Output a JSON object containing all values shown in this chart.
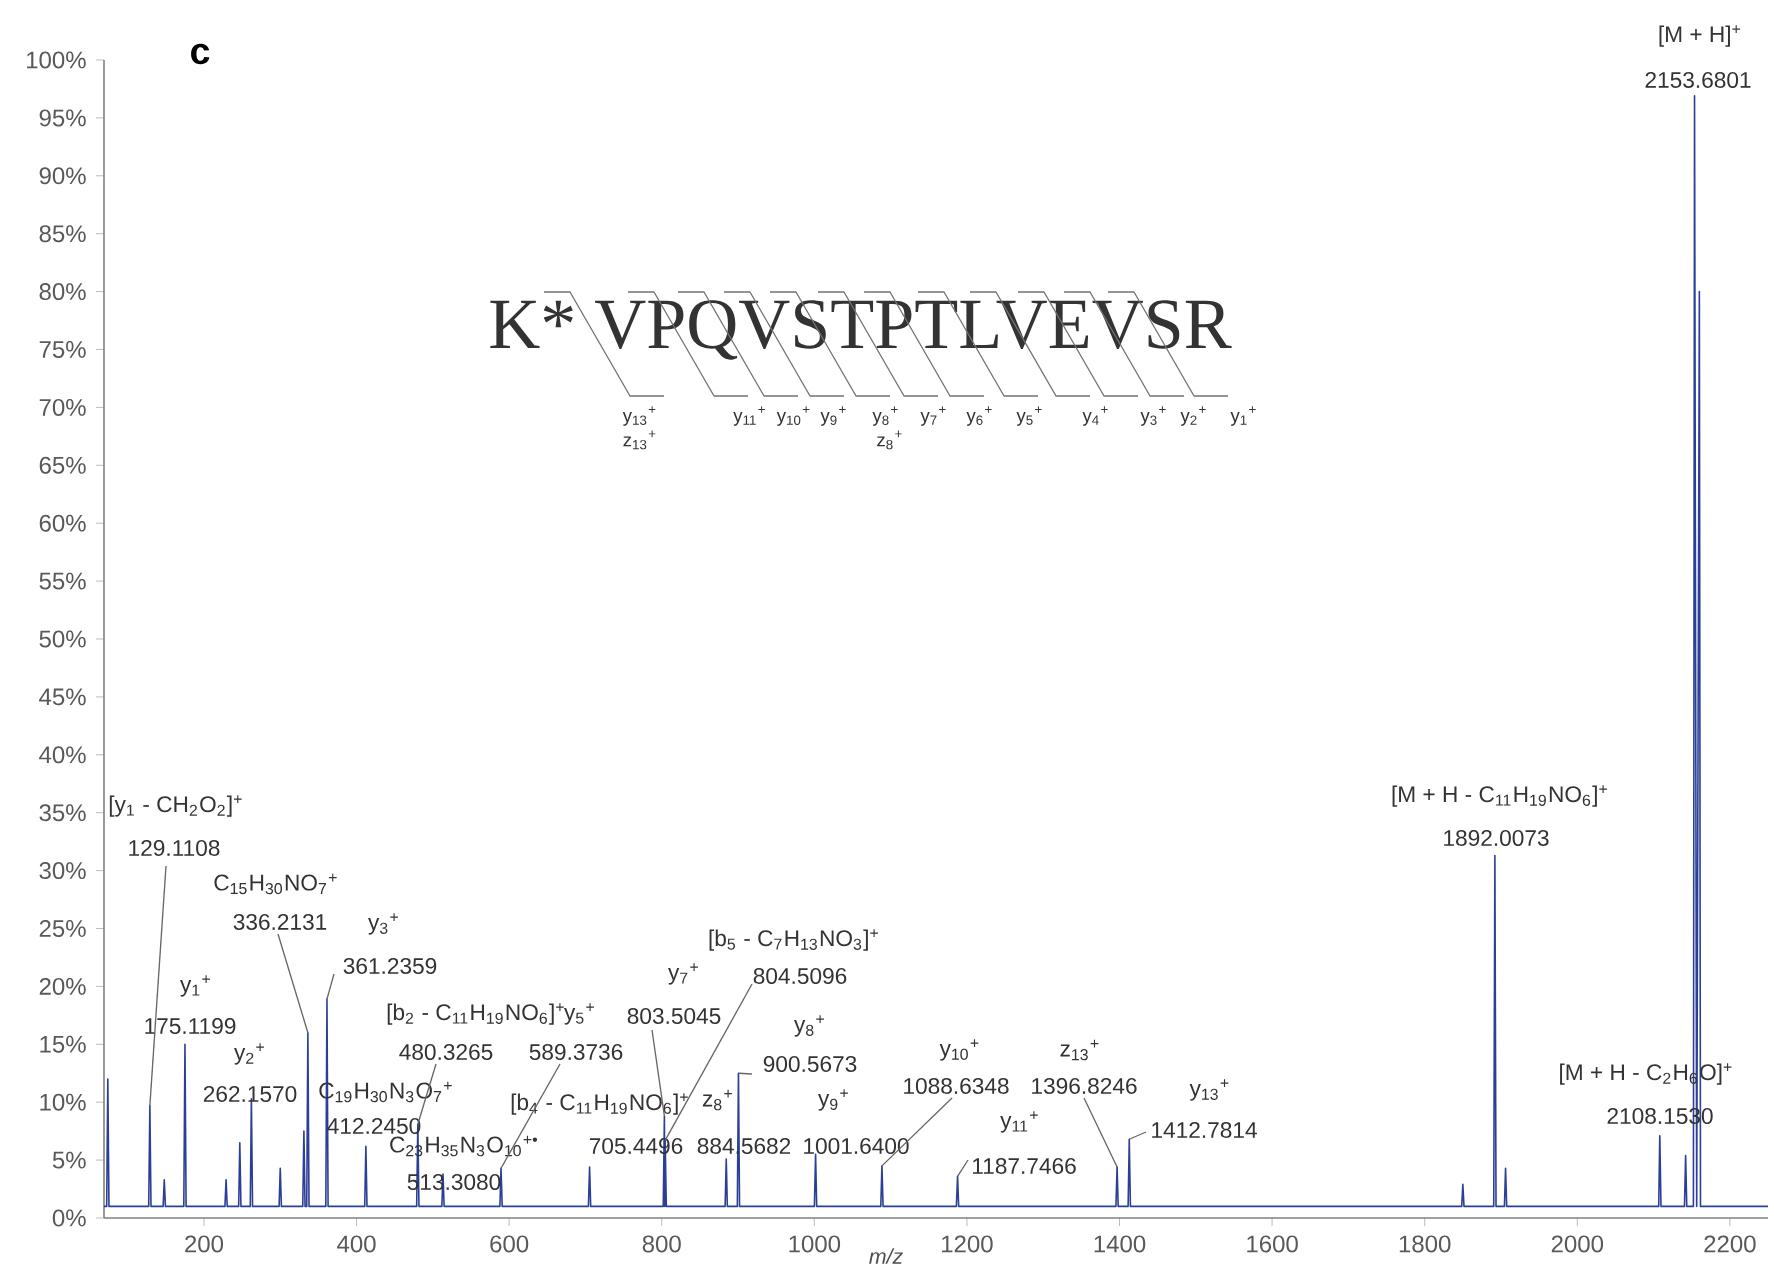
{
  "chart_data": {
    "type": "line",
    "title": "c",
    "xlabel": "m/z",
    "xlim": [
      69,
      2250
    ],
    "ylim": [
      0,
      100
    ],
    "xticks": [
      200,
      400,
      600,
      800,
      1000,
      1200,
      1400,
      1600,
      1800,
      2000,
      2200
    ],
    "yticks": [
      {
        "value": 0,
        "label": "0%"
      },
      {
        "value": 5,
        "label": "5%"
      },
      {
        "value": 10,
        "label": "10%"
      },
      {
        "value": 15,
        "label": "15%"
      },
      {
        "value": 20,
        "label": "20%"
      },
      {
        "value": 25,
        "label": "25%"
      },
      {
        "value": 30,
        "label": "30%"
      },
      {
        "value": 35,
        "label": "35%"
      },
      {
        "value": 40,
        "label": "40%"
      },
      {
        "value": 45,
        "label": "45%"
      },
      {
        "value": 50,
        "label": "50%"
      },
      {
        "value": 55,
        "label": "55%"
      },
      {
        "value": 60,
        "label": "60%"
      },
      {
        "value": 65,
        "label": "65%"
      },
      {
        "value": 70,
        "label": "70%"
      },
      {
        "value": 75,
        "label": "75%"
      },
      {
        "value": 80,
        "label": "80%"
      },
      {
        "value": 85,
        "label": "85%"
      },
      {
        "value": 90,
        "label": "90%"
      },
      {
        "value": 95,
        "label": "95%"
      },
      {
        "value": 100,
        "label": "100%"
      }
    ],
    "series": [
      {
        "color": "#2c3f98",
        "x": [
          69,
          72.5,
          74,
          75.5,
          127.6,
          129.1108,
          130.6,
          146.5,
          148,
          149.5,
          173.6,
          175.1199,
          176.6,
          227.5,
          229,
          230.5,
          245.5,
          247,
          248.5,
          260.7,
          262.157,
          263.7,
          298.5,
          300,
          301.5,
          329.5,
          331,
          332.5,
          334.7,
          336.2131,
          337.7,
          359.7,
          361.2359,
          362.7,
          410.7,
          412.245,
          413.7,
          478.8,
          480.3265,
          481.8,
          511.8,
          513.308,
          514.8,
          587.9,
          589.3736,
          590.9,
          703.9,
          705.4496,
          706.9,
          802,
          803.5045,
          804,
          804.5096,
          806,
          883.1,
          884.5682,
          886,
          899.1,
          900.5673,
          902,
          1000.1,
          1001.64,
          1003.1,
          1087.1,
          1088.6348,
          1090.1,
          1186.2,
          1187.7466,
          1189.2,
          1395.3,
          1396.8246,
          1398.3,
          1411.3,
          1412.7814,
          1414.3,
          1848.5,
          1850,
          1851.5,
          1890.5,
          1892.0073,
          1893.5,
          1904.5,
          1906,
          1907.5,
          2106.7,
          2108.153,
          2109.7,
          2140.5,
          2142,
          2143.5,
          2152.2,
          2153.6801,
          2156.5,
          2160,
          2161.5,
          2250
        ],
        "values": [
          1,
          1,
          12,
          1,
          1,
          9.7,
          1,
          1,
          3.3,
          1,
          1,
          15,
          1,
          1,
          3.3,
          1,
          1,
          6.5,
          1,
          1,
          10.3,
          1,
          1,
          4.3,
          1,
          1,
          7.5,
          1,
          1,
          16,
          1,
          1,
          18.9,
          1,
          1,
          6.2,
          1,
          1,
          8.1,
          1,
          1,
          3.8,
          1,
          1,
          4.3,
          1,
          1,
          4.4,
          1,
          1,
          8.8,
          1,
          6.7,
          1,
          1,
          5.1,
          1,
          1,
          12.5,
          1,
          1,
          5.5,
          1,
          1,
          4.5,
          1,
          1,
          3.6,
          1,
          1,
          4.4,
          1,
          1,
          6.8,
          1,
          1,
          2.9,
          1,
          1,
          31.3,
          1,
          1,
          4.3,
          1,
          1,
          7.1,
          1,
          1,
          5.4,
          1,
          1,
          96.9,
          1,
          80,
          1,
          1
        ]
      }
    ],
    "annotations": [
      "[y$_{1}$ - CH$_{2}$O$_{2}$]$^{+}$",
      {
        "text": "129.1108",
        "x": 129.1108,
        "y": 9.7
      },
      "y$_{1}$$^{+}$",
      "175.1199",
      "y$_{2}$$^{+}$",
      "262.1570",
      "C$_{15}$H$_{30}$NO$_{7}$$^{+}$",
      {
        "text": "336.2131",
        "x": 336.2131,
        "y": 16
      },
      "y$_{3}$$^{+}$",
      {
        "text": "361.2359",
        "x": 361.2359,
        "y": 18.9
      },
      "C$_{19}$H$_{30}$N$_{3}$O$_{7}$$^{+}$",
      "412.2450",
      "[b$_{2}$ - C$_{11}$H$_{19}$NO$_{6}$]$^{+}$",
      {
        "text": "480.3265",
        "x": 480.3265,
        "y": 8.1
      },
      "C$_{23}$H$_{35}$N$_{3}$O$_{10}$$^{+•}$",
      "513.3080",
      "y$_{5}$$^{+}$",
      {
        "text": "589.3736",
        "x": 589.3736,
        "y": 4.3
      },
      "[b$_{4}$ - C$_{11}$H$_{19}$NO$_{6}$]$^{+}$",
      "705.4496",
      "y$_{7}$$^{+}$",
      {
        "text": "803.5045",
        "x": 803.5045,
        "y": 8.8
      },
      "[b$_{5}$ - C$_{7}$H$_{13}$NO$_{3}$]$^{+}$",
      {
        "text": "804.5096",
        "x": 804.5096,
        "y": 6.7
      },
      "z$_{8}$$^{+}$",
      "884.5682",
      "y$_{8}$$^{+}$",
      {
        "text": "900.5673",
        "x": 900.5673,
        "y": 12.5
      },
      "y$_{9}$$^{+}$",
      "1001.6400",
      "y$_{10}$$^{+}$",
      {
        "text": "1088.6348",
        "x": 1088.6348,
        "y": 4.5
      },
      "y$_{11}$$^{+}$",
      {
        "text": "1187.7466",
        "x": 1187.7466,
        "y": 3.6
      },
      "z$_{13}$$^{+}$",
      {
        "text": "1396.8246",
        "x": 1396.8246,
        "y": 4.4
      },
      "y$_{13}$$^{+}$",
      {
        "text": "1412.7814",
        "x": 1412.7814,
        "y": 6.8
      },
      "[M + H - C$_{11}$H$_{19}$NO$_{6}$]$^{+}$",
      "1892.0073",
      "[M + H - C$_{2}$H$_{6}$O]$^{+}$",
      "2108.1530",
      "[M + H]$^{+}$",
      "2153.6801",
      "K* VPQVSTPTLVEVSR",
      "y$_{13}$$^{+}$",
      "z$_{13}$$^{+}$",
      "y$_{11}$$^{+}$",
      "y$_{10}$$^{+}$",
      "y$_{9}$$^{+}$",
      "y$_{8}$$^{+}$",
      "z$_{8}$$^{+}$",
      "y$_{7}$$^{+}$",
      "y$_{6}$$^{+}$",
      "y$_{5}$$^{+}$",
      "y$_{4}$$^{+}$",
      "y$_{3}$$^{+}$",
      "y$_{2}$$^{+}$",
      "y$_{1}$$^{+}$"
    ]
  }
}
